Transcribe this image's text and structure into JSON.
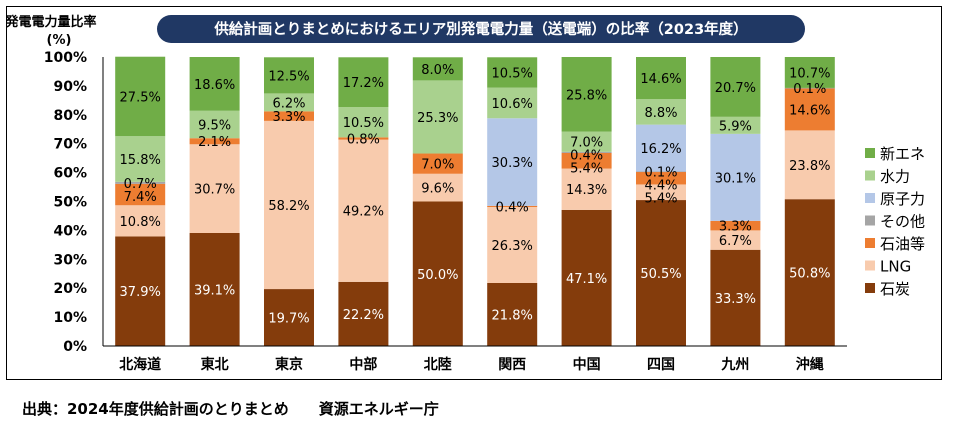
{
  "chart_data": {
    "type": "bar",
    "stacked": true,
    "title": "供給計画とりまとめにおけるエリア別発電電力量（送電端）の比率（2023年度）",
    "ylabel": "発電電力量比率",
    "ylabel_unit": "(%)",
    "xlabel": "",
    "ylim": [
      0,
      100
    ],
    "yticks": [
      0,
      10,
      20,
      30,
      40,
      50,
      60,
      70,
      80,
      90,
      100
    ],
    "ytick_labels": [
      "0%",
      "10%",
      "20%",
      "30%",
      "40%",
      "50%",
      "60%",
      "70%",
      "80%",
      "90%",
      "100%"
    ],
    "categories": [
      "北海道",
      "東北",
      "東京",
      "中部",
      "北陸",
      "関西",
      "中国",
      "四国",
      "九州",
      "沖縄"
    ],
    "legend_position": "right",
    "series": [
      {
        "name": "石炭",
        "color": "#843C0C",
        "label_color": "#ffffff",
        "values": [
          37.9,
          39.1,
          19.7,
          22.2,
          50.0,
          21.8,
          47.1,
          50.5,
          33.3,
          50.8
        ],
        "labels": [
          "37.9%",
          "39.1%",
          "19.7%",
          "22.2%",
          "50.0%",
          "21.8%",
          "47.1%",
          "50.5%",
          "33.3%",
          "50.8%"
        ]
      },
      {
        "name": "LNG",
        "color": "#F8CBAD",
        "label_color": "#000000",
        "values": [
          10.8,
          30.7,
          58.2,
          49.2,
          9.6,
          26.3,
          14.3,
          5.4,
          6.7,
          23.8
        ],
        "labels": [
          "10.8%",
          "30.7%",
          "58.2%",
          "49.2%",
          "9.6%",
          "26.3%",
          "14.3%",
          "5.4%",
          "6.7%",
          "23.8%"
        ]
      },
      {
        "name": "石油等",
        "color": "#ED7D31",
        "label_color": "#000000",
        "values": [
          7.4,
          2.1,
          3.3,
          0.8,
          7.0,
          0.4,
          5.4,
          4.4,
          3.3,
          14.6
        ],
        "labels": [
          "7.4%",
          "2.1%",
          "3.3%",
          "0.8%",
          "7.0%",
          "0.4%",
          "5.4%",
          "4.4%",
          "3.3%",
          "14.6%"
        ]
      },
      {
        "name": "その他",
        "color": "#A5A5A5",
        "label_color": "#000000",
        "values": [
          0.7,
          0,
          0,
          0,
          0,
          0,
          0.4,
          0.1,
          0,
          0.1
        ],
        "labels": [
          "0.7%",
          "",
          "",
          "",
          "",
          "",
          "0.4%",
          "0.1%",
          "",
          "0.1%"
        ]
      },
      {
        "name": "原子力",
        "color": "#B4C7E7",
        "label_color": "#000000",
        "values": [
          0,
          0,
          0,
          0,
          0,
          30.3,
          0,
          16.2,
          30.1,
          0
        ],
        "labels": [
          "",
          "",
          "",
          "",
          "",
          "30.3%",
          "",
          "16.2%",
          "30.1%",
          ""
        ]
      },
      {
        "name": "水力",
        "color": "#A9D18E",
        "label_color": "#000000",
        "values": [
          15.8,
          9.5,
          6.2,
          10.5,
          25.3,
          10.6,
          7.0,
          8.8,
          5.9,
          0
        ],
        "labels": [
          "15.8%",
          "9.5%",
          "6.2%",
          "10.5%",
          "25.3%",
          "10.6%",
          "7.0%",
          "8.8%",
          "5.9%",
          ""
        ]
      },
      {
        "name": "新エネ",
        "color": "#70AD47",
        "label_color": "#000000",
        "values": [
          27.5,
          18.6,
          12.5,
          17.2,
          8.0,
          10.5,
          25.8,
          14.6,
          20.7,
          10.7
        ],
        "labels": [
          "27.5%",
          "18.6%",
          "12.5%",
          "17.2%",
          "8.0%",
          "10.5%",
          "25.8%",
          "14.6%",
          "20.7%",
          "10.7%"
        ]
      }
    ],
    "legend_order": [
      "新エネ",
      "水力",
      "原子力",
      "その他",
      "石油等",
      "LNG",
      "石炭"
    ]
  },
  "colors": {
    "title_bg": "#203864",
    "title_text": "#ffffff",
    "axis": "#000000"
  },
  "source": "出典：2024年度供給計画のとりまとめ　　資源エネルギー庁"
}
